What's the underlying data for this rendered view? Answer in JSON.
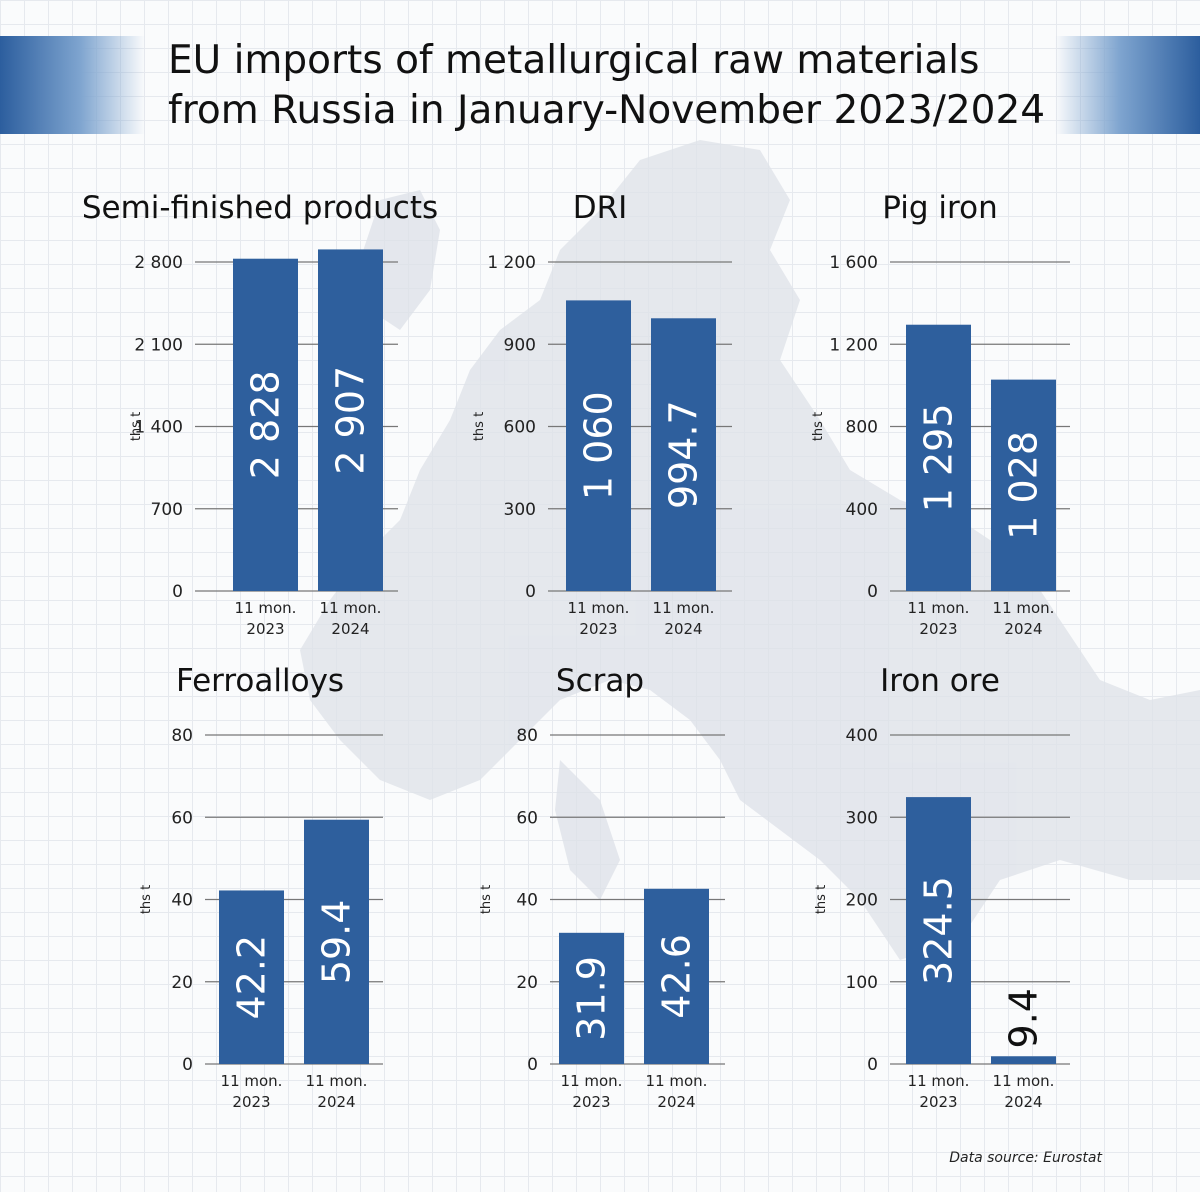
{
  "title_line1": "EU imports of metallurgical raw materials",
  "title_line2": "from Russia in January-November 2023/2024",
  "source": "Data source: Eurostat",
  "colors": {
    "bar": "#2e5f9d",
    "grid": "#777777",
    "band": "#2c5e9e"
  },
  "chart_data": [
    {
      "type": "bar",
      "title": "Semi-finished products",
      "ylabel": "ths t",
      "categories": [
        "11 mon.\n2023",
        "11 mon.\n2024"
      ],
      "values": [
        2828,
        2907
      ],
      "labels": [
        "2 828",
        "2 907"
      ],
      "ylim": [
        0,
        2800
      ],
      "ticks": [
        0,
        700,
        1400,
        2100,
        2800
      ],
      "tick_labels": [
        "0",
        "700",
        "1 400",
        "2 100",
        "2 800"
      ]
    },
    {
      "type": "bar",
      "title": "DRI",
      "ylabel": "ths t",
      "categories": [
        "11 mon.\n2023",
        "11 mon.\n2024"
      ],
      "values": [
        1060,
        994.7
      ],
      "labels": [
        "1 060",
        "994.7"
      ],
      "ylim": [
        0,
        1200
      ],
      "ticks": [
        0,
        300,
        600,
        900,
        1200
      ],
      "tick_labels": [
        "0",
        "300",
        "600",
        "900",
        "1 200"
      ]
    },
    {
      "type": "bar",
      "title": "Pig iron",
      "ylabel": "ths t",
      "categories": [
        "11 mon.\n2023",
        "11 mon.\n2024"
      ],
      "values": [
        1295,
        1028
      ],
      "labels": [
        "1 295",
        "1 028"
      ],
      "ylim": [
        0,
        1600
      ],
      "ticks": [
        0,
        400,
        800,
        1200,
        1600
      ],
      "tick_labels": [
        "0",
        "400",
        "800",
        "1 200",
        "1 600"
      ]
    },
    {
      "type": "bar",
      "title": "Ferroalloys",
      "ylabel": "ths t",
      "categories": [
        "11 mon.\n2023",
        "11 mon.\n2024"
      ],
      "values": [
        42.2,
        59.4
      ],
      "labels": [
        "42.2",
        "59.4"
      ],
      "ylim": [
        0,
        80
      ],
      "ticks": [
        0,
        20,
        40,
        60,
        80
      ],
      "tick_labels": [
        "0",
        "20",
        "40",
        "60",
        "80"
      ]
    },
    {
      "type": "bar",
      "title": "Scrap",
      "ylabel": "ths t",
      "categories": [
        "11 mon.\n2023",
        "11 mon.\n2024"
      ],
      "values": [
        31.9,
        42.6
      ],
      "labels": [
        "31.9",
        "42.6"
      ],
      "ylim": [
        0,
        80
      ],
      "ticks": [
        0,
        20,
        40,
        60,
        80
      ],
      "tick_labels": [
        "0",
        "20",
        "40",
        "60",
        "80"
      ]
    },
    {
      "type": "bar",
      "title": "Iron ore",
      "ylabel": "ths t",
      "categories": [
        "11 mon.\n2023",
        "11 mon.\n2024"
      ],
      "values": [
        324.5,
        9.4
      ],
      "labels": [
        "324.5",
        "9.4"
      ],
      "ylim": [
        0,
        400
      ],
      "ticks": [
        0,
        100,
        200,
        300,
        400
      ],
      "tick_labels": [
        "0",
        "100",
        "200",
        "300",
        "400"
      ]
    }
  ]
}
